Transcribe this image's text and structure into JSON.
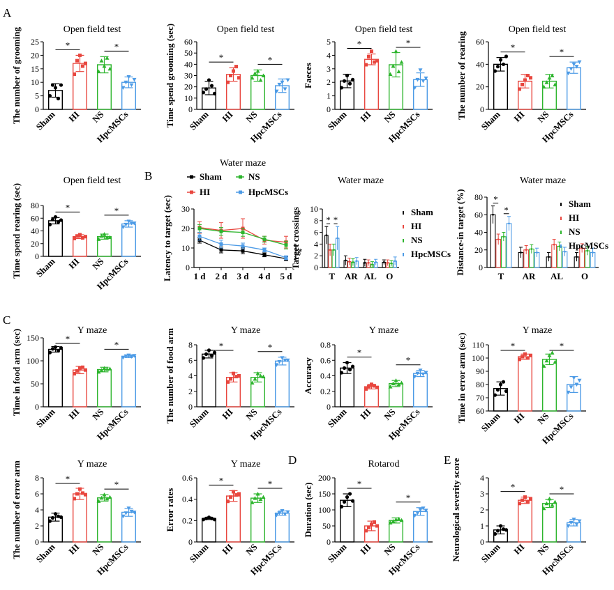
{
  "colors": {
    "Sham": "#000000",
    "HI": "#e8473f",
    "NS": "#2db52d",
    "HpcMSCs": "#4d9be6"
  },
  "chart_data": [
    {
      "id": "A1",
      "panel_letter": "A",
      "type": "bar",
      "title": "Open field test",
      "ylabel": "The number of grooming",
      "categories": [
        "Sham",
        "HI",
        "NS",
        "HpcMSCs"
      ],
      "values": [
        7,
        17,
        16.5,
        10
      ],
      "errors": [
        2.5,
        3,
        3,
        2
      ],
      "points": [
        [
          5,
          9,
          8,
          4,
          9
        ],
        [
          13,
          18,
          20,
          16,
          17
        ],
        [
          14,
          18,
          16,
          19,
          15
        ],
        [
          8,
          10,
          12,
          9,
          11
        ]
      ],
      "ylim": [
        0,
        25
      ],
      "yticks": [
        0,
        5,
        10,
        15,
        20,
        25
      ],
      "sig": [
        [
          "Sham",
          "HI",
          "*"
        ],
        [
          "NS",
          "HpcMSCs",
          "*"
        ]
      ]
    },
    {
      "id": "A2",
      "type": "bar",
      "title": "Open field test",
      "ylabel": "Time spend grooming (sec)",
      "categories": [
        "Sham",
        "HI",
        "NS",
        "HpcMSCs"
      ],
      "values": [
        19,
        31,
        30,
        21
      ],
      "errors": [
        6,
        6,
        5,
        6
      ],
      "points": [
        [
          15,
          18,
          26,
          21,
          14
        ],
        [
          24,
          30,
          34,
          38,
          28
        ],
        [
          28,
          32,
          34,
          26,
          30
        ],
        [
          16,
          22,
          24,
          18,
          26
        ]
      ],
      "ylim": [
        0,
        60
      ],
      "yticks": [
        0,
        10,
        20,
        30,
        40,
        50,
        60
      ],
      "sig": [
        [
          "Sham",
          "HI",
          "*"
        ],
        [
          "NS",
          "HpcMSCs",
          "*"
        ]
      ]
    },
    {
      "id": "A3",
      "type": "bar",
      "title": "Open field test",
      "ylabel": "Faeces",
      "categories": [
        "Sham",
        "HI",
        "NS",
        "HpcMSCs"
      ],
      "values": [
        2.1,
        3.7,
        3.3,
        2.2
      ],
      "errors": [
        0.5,
        0.4,
        0.9,
        0.5
      ],
      "points": [
        [
          1.6,
          2.1,
          2.5,
          1.9,
          2.2
        ],
        [
          3.3,
          3.9,
          4.3,
          3.5,
          3.6
        ],
        [
          2.6,
          3.2,
          4.3,
          2.8,
          3.5
        ],
        [
          1.6,
          2.2,
          2.9,
          2.1,
          2.3
        ]
      ],
      "ylim": [
        0,
        5
      ],
      "yticks": [
        0,
        1,
        2,
        3,
        4,
        5
      ],
      "sig": [
        [
          "Sham",
          "HI",
          "*"
        ],
        [
          "NS",
          "HpcMSCs",
          "*"
        ]
      ]
    },
    {
      "id": "A4",
      "type": "bar",
      "title": "Open field test",
      "ylabel": "The number of rearing",
      "categories": [
        "Sham",
        "HI",
        "NS",
        "HpcMSCs"
      ],
      "values": [
        40,
        25,
        25,
        37
      ],
      "errors": [
        6,
        6,
        6,
        5
      ],
      "points": [
        [
          34,
          38,
          44,
          40,
          47
        ],
        [
          18,
          22,
          26,
          30,
          28
        ],
        [
          20,
          24,
          28,
          30,
          22
        ],
        [
          32,
          36,
          40,
          38,
          42
        ]
      ],
      "ylim": [
        0,
        60
      ],
      "yticks": [
        0,
        20,
        40,
        60
      ],
      "sig": [
        [
          "Sham",
          "HI",
          "*"
        ],
        [
          "NS",
          "HpcMSCs",
          "*"
        ]
      ]
    },
    {
      "id": "A5",
      "type": "bar",
      "title": "Open field test",
      "ylabel": "Time spend rearing (sec)",
      "categories": [
        "Sham",
        "HI",
        "NS",
        "HpcMSCs"
      ],
      "values": [
        56,
        31,
        31,
        51
      ],
      "errors": [
        5,
        3,
        4,
        5
      ],
      "points": [
        [
          50,
          58,
          62,
          54,
          57
        ],
        [
          28,
          32,
          34,
          29,
          31
        ],
        [
          27,
          32,
          35,
          30,
          30
        ],
        [
          46,
          50,
          55,
          52,
          52
        ]
      ],
      "ylim": [
        0,
        80
      ],
      "yticks": [
        0,
        20,
        40,
        60,
        80
      ],
      "sig": [
        [
          "Sham",
          "HI",
          "*"
        ],
        [
          "NS",
          "HpcMSCs",
          "*"
        ]
      ]
    },
    {
      "id": "B1",
      "panel_letter": "B",
      "type": "line",
      "title": "Water maze",
      "ylabel": "Latency to target (sec)",
      "categories": [
        "1 d",
        "2 d",
        "3 d",
        "4 d",
        "5 d"
      ],
      "series": [
        {
          "name": "Sham",
          "values": [
            14,
            9,
            8.5,
            6.5,
            4.5
          ],
          "errors": [
            1.5,
            1.5,
            1.5,
            1,
            1
          ]
        },
        {
          "name": "HI",
          "values": [
            20.5,
            19,
            20,
            14,
            13
          ],
          "errors": [
            3,
            4,
            5,
            2,
            3
          ]
        },
        {
          "name": "NS",
          "values": [
            20,
            18.5,
            18,
            14.5,
            11.5
          ],
          "errors": [
            2,
            2,
            2,
            1.5,
            2
          ]
        },
        {
          "name": "HpcMSCs",
          "values": [
            16,
            12,
            11,
            9,
            5
          ],
          "errors": [
            2,
            2,
            1.5,
            1,
            1
          ]
        }
      ],
      "ylim": [
        0,
        30
      ],
      "yticks": [
        0,
        10,
        20,
        30
      ],
      "sig_label": "*"
    },
    {
      "id": "B2",
      "type": "groupbar",
      "title": "Water maze",
      "ylabel": "Target crossings",
      "categories": [
        "T",
        "AR",
        "AL",
        "O"
      ],
      "series": [
        {
          "name": "Sham",
          "values": [
            5.5,
            1.2,
            0.8,
            0.9
          ],
          "errors": [
            1.5,
            0.8,
            0.6,
            0.4
          ]
        },
        {
          "name": "HI",
          "values": [
            3,
            1,
            0.8,
            0.8
          ],
          "errors": [
            1,
            0.6,
            0.5,
            0.5
          ]
        },
        {
          "name": "NS",
          "values": [
            3,
            0.9,
            0.5,
            0.7
          ],
          "errors": [
            1,
            0.6,
            0.5,
            0.5
          ]
        },
        {
          "name": "HpcMSCs",
          "values": [
            5,
            1.1,
            0.9,
            1.1
          ],
          "errors": [
            2,
            0.6,
            0.5,
            0.7
          ]
        }
      ],
      "ylim": [
        0,
        10
      ],
      "yticks": [
        0,
        2,
        4,
        6,
        8,
        10
      ],
      "sig": [
        [
          "Sham",
          "HI",
          "*"
        ],
        [
          "NS",
          "HpcMSCs",
          "*"
        ]
      ]
    },
    {
      "id": "B3",
      "type": "groupbar",
      "title": "Water maze",
      "ylabel": "Distance-in target (%)",
      "categories": [
        "T",
        "AR",
        "AL",
        "O"
      ],
      "series": [
        {
          "name": "Sham",
          "values": [
            60,
            17,
            12,
            12
          ],
          "errors": [
            10,
            6,
            5,
            5
          ]
        },
        {
          "name": "HI",
          "values": [
            32,
            20,
            26,
            22
          ],
          "errors": [
            6,
            5,
            6,
            5
          ]
        },
        {
          "name": "NS",
          "values": [
            35,
            21,
            24,
            19
          ],
          "errors": [
            5,
            5,
            5,
            5
          ]
        },
        {
          "name": "HpcMSCs",
          "values": [
            50,
            17,
            18,
            17
          ],
          "errors": [
            8,
            5,
            5,
            5
          ]
        }
      ],
      "ylim": [
        0,
        80
      ],
      "yticks": [
        0,
        20,
        40,
        60,
        80
      ],
      "sig": [
        [
          "Sham",
          "HI",
          "*"
        ],
        [
          "NS",
          "HpcMSCs",
          "*"
        ]
      ]
    },
    {
      "id": "C1",
      "panel_letter": "C",
      "type": "bar",
      "title": "Y maze",
      "ylabel": "Time in food arm (sec)",
      "categories": [
        "Sham",
        "HI",
        "NS",
        "HpcMSCs"
      ],
      "values": [
        125,
        80,
        81,
        110
      ],
      "errors": [
        6,
        8,
        5,
        3
      ],
      "points": [
        [
          118,
          126,
          130,
          122,
          128
        ],
        [
          72,
          78,
          84,
          86,
          80
        ],
        [
          76,
          80,
          84,
          82,
          83
        ],
        [
          107,
          110,
          112,
          109,
          111
        ]
      ],
      "ylim": [
        0,
        150
      ],
      "yticks": [
        0,
        50,
        100,
        150
      ],
      "sig": [
        [
          "Sham",
          "HI",
          "*"
        ],
        [
          "NS",
          "HpcMSCs",
          "*"
        ]
      ]
    },
    {
      "id": "C2",
      "type": "bar",
      "title": "Y maze",
      "ylabel": "The number of  food arm",
      "categories": [
        "Sham",
        "HI",
        "NS",
        "HpcMSCs"
      ],
      "values": [
        6.8,
        3.8,
        3.8,
        5.9
      ],
      "errors": [
        0.5,
        0.6,
        0.6,
        0.5
      ],
      "points": [
        [
          6.3,
          6.8,
          7.3,
          6.6,
          7
        ],
        [
          3.2,
          3.6,
          4.3,
          3.9,
          4
        ],
        [
          3.1,
          3.6,
          4.3,
          4,
          3.9
        ],
        [
          5.4,
          5.8,
          6.3,
          6,
          6
        ]
      ],
      "ylim": [
        0,
        8
      ],
      "yticks": [
        0,
        2,
        4,
        6,
        8
      ],
      "sig": [
        [
          "Sham",
          "HI",
          "*"
        ],
        [
          "NS",
          "HpcMSCs",
          "*"
        ]
      ]
    },
    {
      "id": "C3",
      "type": "bar",
      "title": "Y maze",
      "ylabel": "Accuracy",
      "categories": [
        "Sham",
        "HI",
        "NS",
        "HpcMSCs"
      ],
      "values": [
        0.5,
        0.26,
        0.3,
        0.43
      ],
      "errors": [
        0.07,
        0.03,
        0.04,
        0.04
      ],
      "points": [
        [
          0.44,
          0.5,
          0.57,
          0.48,
          0.52
        ],
        [
          0.23,
          0.26,
          0.29,
          0.27,
          0.25
        ],
        [
          0.26,
          0.3,
          0.34,
          0.29,
          0.31
        ],
        [
          0.39,
          0.43,
          0.47,
          0.42,
          0.44
        ]
      ],
      "ylim": [
        0,
        0.8
      ],
      "yticks": [
        0,
        0.2,
        0.4,
        0.6,
        0.8
      ],
      "sig": [
        [
          "Sham",
          "HI",
          "*"
        ],
        [
          "NS",
          "HpcMSCs",
          "*"
        ]
      ]
    },
    {
      "id": "C4",
      "type": "bar",
      "title": "Y maze",
      "ylabel": "Time in error arm (sec)",
      "categories": [
        "Sham",
        "HI",
        "NS",
        "HpcMSCs"
      ],
      "values": [
        77,
        101,
        99,
        80
      ],
      "errors": [
        5,
        2,
        4,
        6
      ],
      "points": [
        [
          72,
          76,
          80,
          82,
          75
        ],
        [
          99,
          101,
          103,
          100,
          102
        ],
        [
          94,
          98,
          102,
          104,
          97
        ],
        [
          74,
          78,
          85,
          80,
          83
        ]
      ],
      "ylim": [
        60,
        110
      ],
      "yticks": [
        60,
        70,
        80,
        90,
        100,
        110
      ],
      "sig": [
        [
          "Sham",
          "HI",
          "*"
        ],
        [
          "NS",
          "HpcMSCs",
          "*"
        ]
      ]
    },
    {
      "id": "C5",
      "type": "bar",
      "title": "Y maze",
      "ylabel": "The number of error arm",
      "categories": [
        "Sham",
        "HI",
        "NS",
        "HpcMSCs"
      ],
      "values": [
        3.1,
        6,
        5.5,
        3.7
      ],
      "errors": [
        0.5,
        0.7,
        0.4,
        0.5
      ],
      "points": [
        [
          2.6,
          3,
          3.5,
          3.2,
          3.1
        ],
        [
          5.4,
          6,
          6.6,
          6.1,
          5.9
        ],
        [
          5.1,
          5.5,
          5.9,
          5.4,
          5.6
        ],
        [
          3.2,
          3.6,
          4.2,
          3.8,
          3.7
        ]
      ],
      "ylim": [
        0,
        8
      ],
      "yticks": [
        0,
        2,
        4,
        6,
        8
      ],
      "sig": [
        [
          "Sham",
          "HI",
          "*"
        ],
        [
          "NS",
          "HpcMSCs",
          "*"
        ]
      ]
    },
    {
      "id": "C6",
      "type": "bar",
      "title": "Y maze",
      "ylabel": "Error rates",
      "categories": [
        "Sham",
        "HI",
        "NS",
        "HpcMSCs"
      ],
      "values": [
        0.22,
        0.43,
        0.41,
        0.27
      ],
      "errors": [
        0.01,
        0.05,
        0.04,
        0.02
      ],
      "points": [
        [
          0.21,
          0.22,
          0.23,
          0.22,
          0.21
        ],
        [
          0.38,
          0.42,
          0.47,
          0.44,
          0.45
        ],
        [
          0.37,
          0.41,
          0.45,
          0.4,
          0.42
        ],
        [
          0.25,
          0.27,
          0.29,
          0.26,
          0.28
        ]
      ],
      "ylim": [
        0,
        0.6
      ],
      "yticks": [
        0,
        0.2,
        0.4,
        0.6
      ],
      "sig": [
        [
          "Sham",
          "HI",
          "*"
        ],
        [
          "NS",
          "HpcMSCs",
          "*"
        ]
      ]
    },
    {
      "id": "D",
      "panel_letter": "D",
      "type": "bar",
      "title": "Rotarod",
      "ylabel": "Duration (sec)",
      "categories": [
        "Sham",
        "HI",
        "NS",
        "HpcMSCs"
      ],
      "values": [
        130,
        50,
        67,
        95
      ],
      "errors": [
        20,
        15,
        8,
        12
      ],
      "points": [
        [
          110,
          125,
          140,
          150,
          128
        ],
        [
          35,
          45,
          55,
          62,
          50
        ],
        [
          60,
          65,
          70,
          72,
          68
        ],
        [
          82,
          90,
          100,
          105,
          98
        ]
      ],
      "ylim": [
        0,
        200
      ],
      "yticks": [
        0,
        50,
        100,
        150,
        200
      ],
      "sig": [
        [
          "Sham",
          "HI",
          "*"
        ],
        [
          "NS",
          "HpcMSCs",
          "*"
        ]
      ]
    },
    {
      "id": "E",
      "panel_letter": "E",
      "type": "bar",
      "title": "",
      "ylabel": "Neurological severity score",
      "categories": [
        "Sham",
        "HI",
        "NS",
        "HpcMSCs"
      ],
      "values": [
        0.75,
        2.6,
        2.4,
        1.2
      ],
      "errors": [
        0.25,
        0.2,
        0.25,
        0.2
      ],
      "points": [
        [
          0.5,
          0.7,
          1,
          0.8,
          0.75
        ],
        [
          2.4,
          2.6,
          2.8,
          2.5,
          2.7
        ],
        [
          2.1,
          2.4,
          2.7,
          2.3,
          2.5
        ],
        [
          1,
          1.2,
          1.4,
          1.1,
          1.3
        ]
      ],
      "ylim": [
        0,
        4
      ],
      "yticks": [
        0,
        1,
        2,
        3,
        4
      ],
      "sig": [
        [
          "Sham",
          "HI",
          "*"
        ],
        [
          "NS",
          "HpcMSCs",
          "*"
        ]
      ]
    }
  ]
}
